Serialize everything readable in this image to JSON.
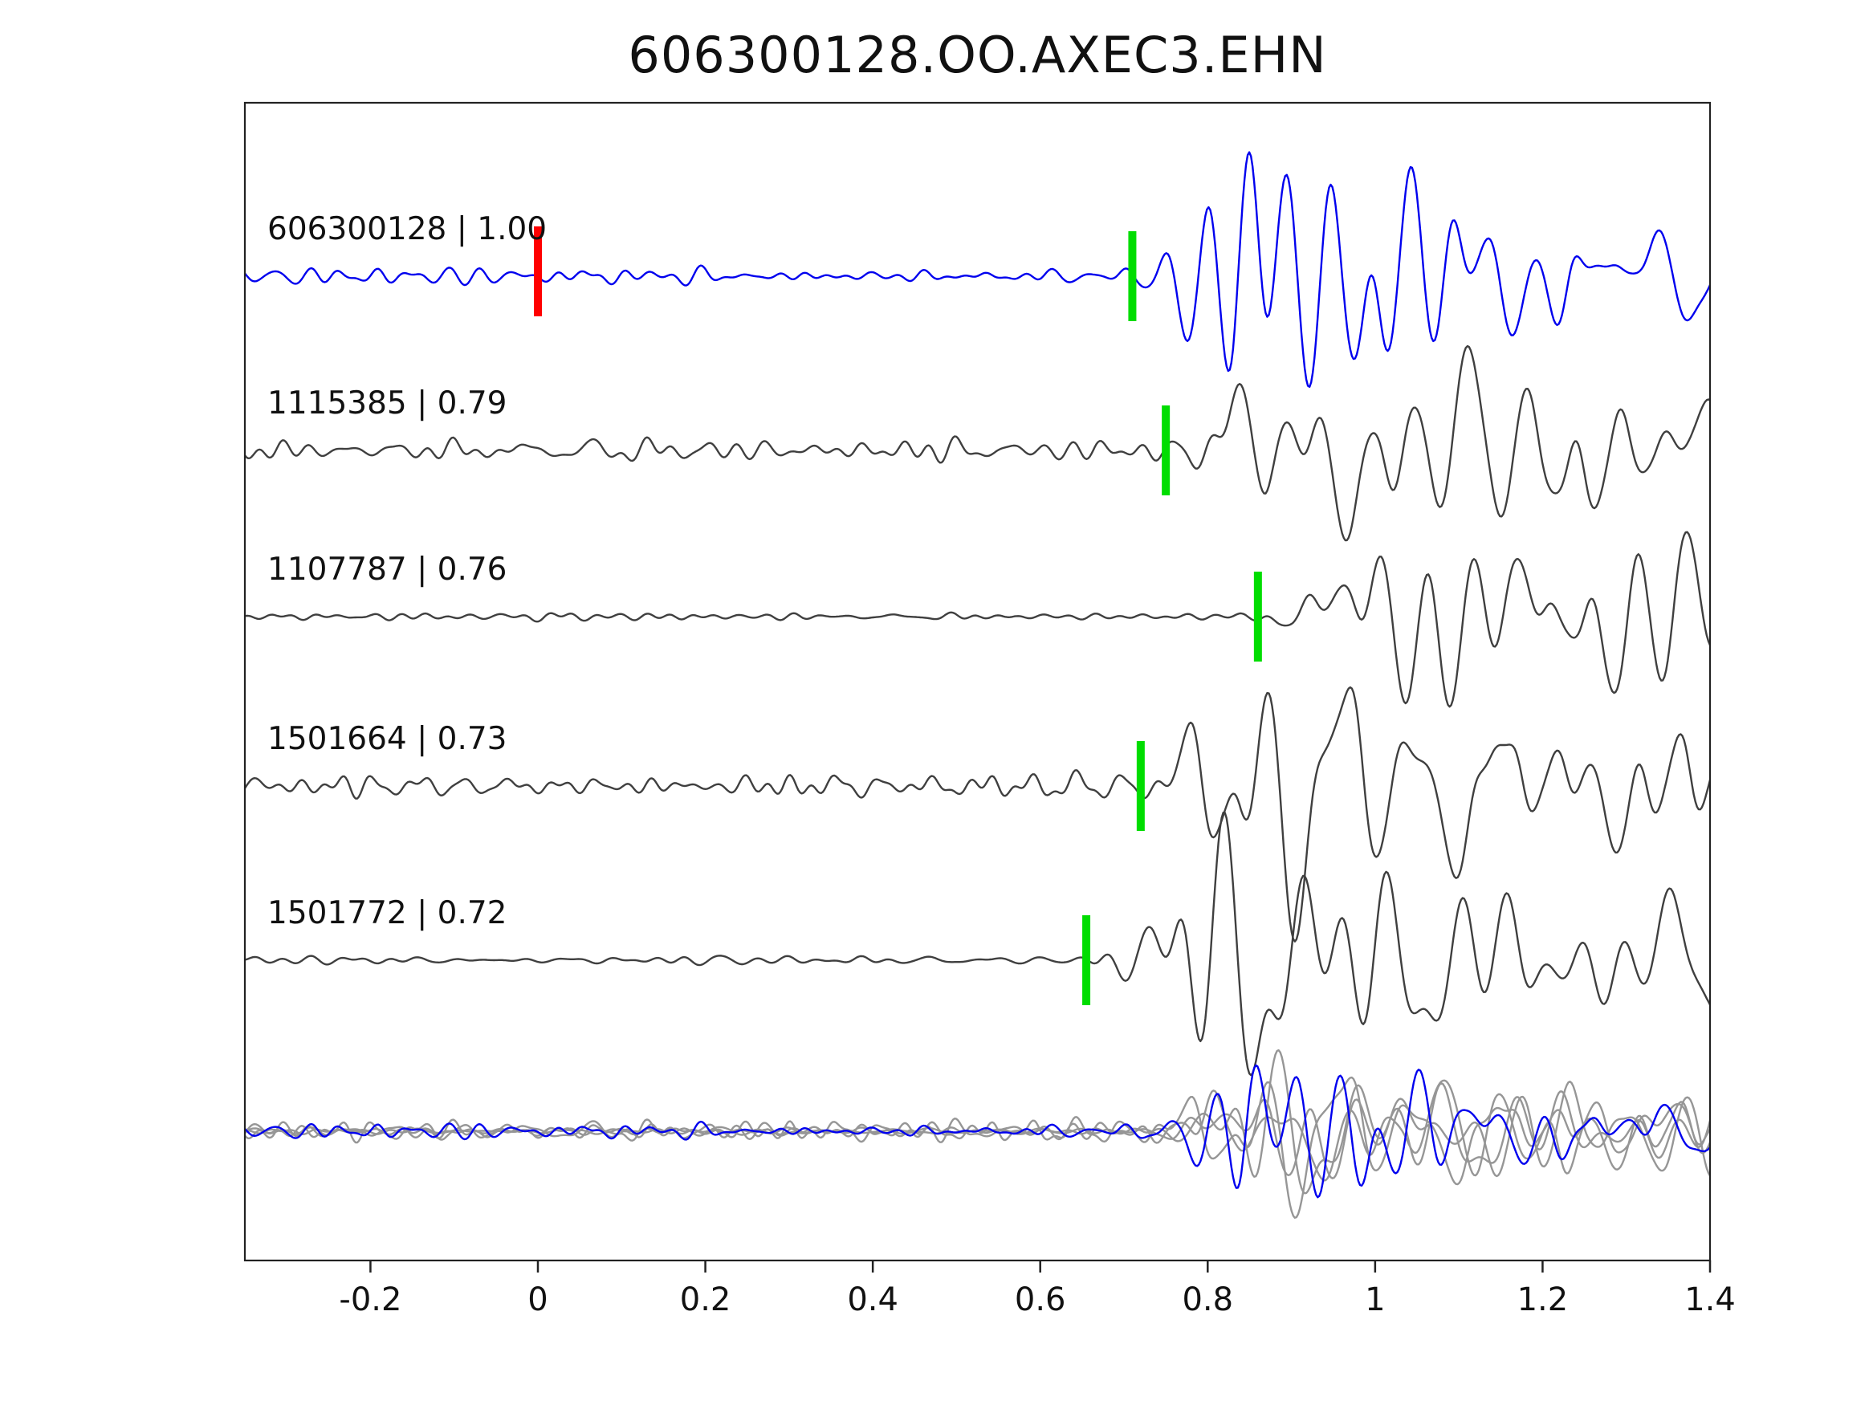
{
  "title": "606300128.OO.AXEC3.EHN",
  "colors": {
    "reference_trace": "#0000ee",
    "match_trace": "#3f3f3f",
    "overlay_gray": "#969696",
    "pick_marker": "#00dd00",
    "reference_zero_marker": "#ff0000",
    "axis": "#222222",
    "text": "#111111"
  },
  "axis": {
    "xmin": -0.35,
    "xmax": 1.4,
    "xticks": [
      -0.2,
      0,
      0.2,
      0.4,
      0.6,
      0.8,
      1,
      1.2,
      1.4
    ],
    "xtick_labels": [
      "-0.2",
      "0",
      "0.2",
      "0.4",
      "0.6",
      "0.8",
      "1",
      "1.2",
      "1.4"
    ]
  },
  "chart_data": {
    "type": "line",
    "title": "606300128.OO.AXEC3.EHN",
    "xlabel": "",
    "ylabel": "",
    "xlim": [
      -0.35,
      1.4
    ],
    "grid": false,
    "legend": "none",
    "description": "Template-matching waveform comparison: reference event trace (blue) with red zero-time marker, four matched detections (dark gray) with green pick markers, and an aligned overlay of all traces at the bottom.",
    "traces": [
      {
        "id": "606300128",
        "correlation": 1.0,
        "label": "606300128 | 1.00",
        "role": "reference",
        "pick_x": 0.71,
        "zero_marker_x": 0,
        "noise_amp": 15,
        "signal_amp": 140,
        "seed": 11
      },
      {
        "id": "1115385",
        "correlation": 0.79,
        "label": "1115385 | 0.79",
        "role": "match",
        "pick_x": 0.75,
        "noise_amp": 21,
        "signal_amp": 135,
        "seed": 22
      },
      {
        "id": "1107787",
        "correlation": 0.76,
        "label": "1107787 | 0.76",
        "role": "match",
        "pick_x": 0.86,
        "noise_amp": 6,
        "signal_amp": 150,
        "seed": 33
      },
      {
        "id": "1501664",
        "correlation": 0.73,
        "label": "1501664 | 0.73",
        "role": "match",
        "pick_x": 0.72,
        "noise_amp": 19,
        "signal_amp": 160,
        "seed": 44
      },
      {
        "id": "1501772",
        "correlation": 0.72,
        "label": "1501772 | 0.72",
        "role": "match",
        "pick_x": 0.655,
        "noise_amp": 7,
        "signal_amp": 150,
        "seed": 55
      }
    ],
    "overlay": {
      "description": "All five traces overlaid, picks aligned",
      "aligned_pick_x": 0.72,
      "noise_scale": 0.9,
      "signal_scale": 0.55
    }
  }
}
